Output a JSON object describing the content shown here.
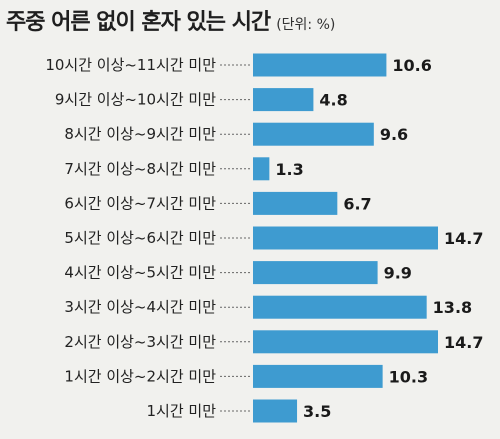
{
  "chart_data": {
    "type": "bar",
    "orientation": "horizontal",
    "title": "주중 어른 없이 혼자 있는 시간",
    "unit": "(단위: %)",
    "categories": [
      "10시간 이상~11시간 미만",
      "9시간 이상~10시간 미만",
      "8시간 이상~9시간 미만",
      "7시간 이상~8시간 미만",
      "6시간 이상~7시간 미만",
      "5시간 이상~6시간 미만",
      "4시간 이상~5시간 미만",
      "3시간 이상~4시간 미만",
      "2시간 이상~3시간 미만",
      "1시간 이상~2시간 미만",
      "1시간 미만"
    ],
    "values": [
      10.6,
      4.8,
      9.6,
      1.3,
      6.7,
      14.7,
      9.9,
      13.8,
      14.7,
      10.3,
      3.5
    ],
    "value_labels": [
      "10.6",
      "4.8",
      "9.6",
      "1.3",
      "6.7",
      "14.7",
      "9.9",
      "13.8",
      "14.7",
      "10.3",
      "3.5"
    ],
    "xlim": [
      0,
      15
    ],
    "grid": false,
    "bar_color": "#3e9bd0",
    "leader_lines": "dashed"
  }
}
